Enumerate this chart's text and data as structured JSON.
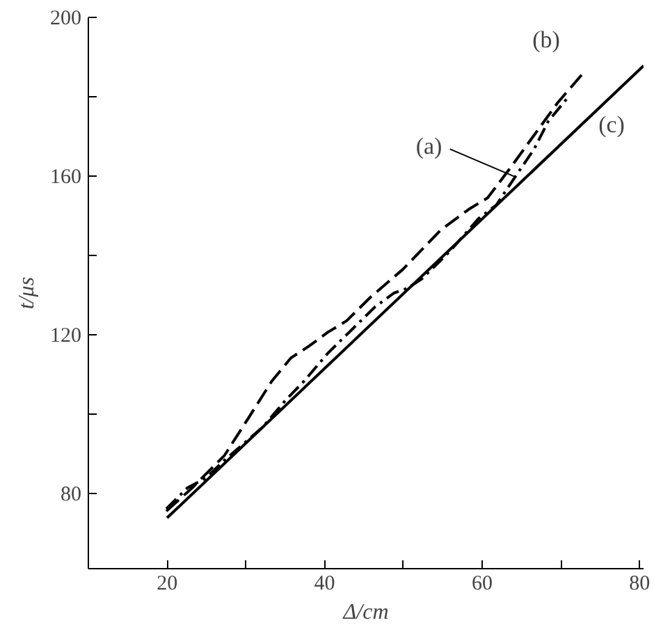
{
  "chart_data": {
    "type": "line",
    "xlabel": "Δ/cm",
    "ylabel": "t/μs",
    "xlim": [
      10,
      80.5
    ],
    "ylim": [
      61,
      200
    ],
    "xticks": [
      20,
      {
        "value": 30,
        "label": null
      },
      40,
      {
        "value": 50,
        "label": null
      },
      60,
      {
        "value": 70,
        "label": null
      },
      80
    ],
    "yticks": [
      80,
      {
        "value": 100,
        "label": null
      },
      120,
      {
        "value": 140,
        "label": null
      },
      160,
      {
        "value": 180,
        "label": null
      },
      200
    ],
    "grid": false,
    "series": [
      {
        "color": "#000000",
        "line_style": "dashdot",
        "x": [
          19.9,
          22.6,
          24.9,
          27.3,
          32.1,
          35.1,
          37.4,
          40.4,
          42.8,
          46.4,
          48.8,
          50.5,
          52.3,
          55.9,
          59.5,
          61.8,
          64.2,
          66.6,
          68.4,
          70.8
        ],
        "values": [
          76.1,
          81.4,
          83.8,
          88.4,
          96.6,
          103.6,
          108.3,
          115.3,
          120,
          127,
          130.5,
          131.7,
          134,
          141,
          149.2,
          152.7,
          159.8,
          166.8,
          173.8,
          179.6
        ]
      },
      {
        "color": "#000000",
        "line_style": "dashed",
        "x": [
          19.9,
          23.2,
          27.3,
          30.3,
          33.3,
          35.7,
          38.0,
          40.4,
          42.8,
          45.8,
          49.9,
          54.7,
          58.3,
          60.7,
          63.6,
          66.6,
          69.6,
          72.9
        ],
        "values": [
          75.5,
          81.4,
          89.6,
          98.9,
          108.3,
          114.1,
          117.1,
          120.6,
          123.5,
          129.4,
          136.4,
          146.3,
          151.6,
          154.5,
          162.1,
          170.3,
          178.5,
          186.1
        ]
      },
      {
        "color": "#000000",
        "line_style": "solid",
        "x": [
          20,
          80.5
        ],
        "values": [
          73.8,
          187.8
        ]
      }
    ],
    "annotations": [
      {
        "text": "(a)",
        "x": 64.2,
        "y": 159.8
      },
      "(b)",
      "(c)"
    ]
  }
}
